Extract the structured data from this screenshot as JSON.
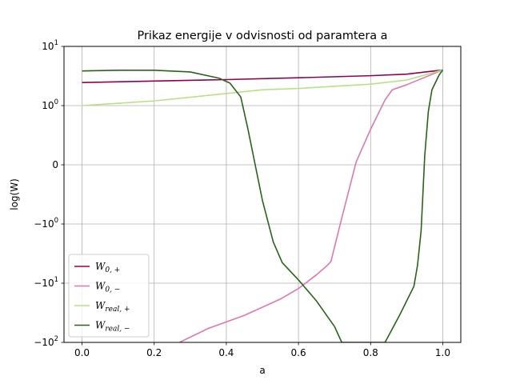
{
  "chart_data": {
    "type": "line",
    "title": "Prikaz energije v odvisnosti od paramtera a",
    "xlabel": "a",
    "ylabel": "log(W)",
    "xlim": [
      -0.05,
      1.05
    ],
    "y_scale": "symlog",
    "ylim": [
      -100,
      10
    ],
    "grid": true,
    "legend_position": "lower-left",
    "x_ticks": [
      0.0,
      0.2,
      0.4,
      0.6,
      0.8,
      1.0
    ],
    "x_tick_labels": [
      "0.0",
      "0.2",
      "0.4",
      "0.6",
      "0.8",
      "1.0"
    ],
    "y_ticks": [
      10,
      1,
      0,
      -1,
      -10,
      -100
    ],
    "y_tick_labels": [
      {
        "base": "10",
        "exp": "1"
      },
      {
        "base": "10",
        "exp": "0"
      },
      {
        "base": "0",
        "exp": ""
      },
      {
        "base": "−10",
        "exp": "0"
      },
      {
        "base": "−10",
        "exp": "1"
      },
      {
        "base": "−10",
        "exp": "2"
      }
    ],
    "series": [
      {
        "name": "W_{0,+}",
        "label_main": "W",
        "label_sub": "0, +",
        "color": "#8e0152",
        "x": [
          0.0,
          0.2,
          0.4,
          0.6,
          0.8,
          0.9,
          1.0
        ],
        "y": [
          2.45,
          2.6,
          2.75,
          2.95,
          3.2,
          3.4,
          4.0
        ]
      },
      {
        "name": "W_{0,-}",
        "label_main": "W",
        "label_sub": "0, −",
        "color": "#de77ae",
        "x": [
          0.27,
          0.35,
          0.45,
          0.55,
          0.6,
          0.65,
          0.68,
          0.69,
          0.72,
          0.76,
          0.8,
          0.84,
          0.86,
          0.9,
          0.95,
          1.0
        ],
        "y": [
          -100,
          -58,
          -35,
          -18.5,
          -12.3,
          -7.2,
          -5.0,
          -4.3,
          -0.9,
          0.05,
          0.6,
          1.25,
          1.85,
          2.25,
          3.0,
          4.0
        ]
      },
      {
        "name": "W_{real,+}",
        "label_main": "W",
        "label_sub": "real, +",
        "color": "#b8e186",
        "x": [
          0.0,
          0.2,
          0.4,
          0.5,
          0.6,
          0.8,
          0.9,
          1.0
        ],
        "y": [
          1.0,
          1.2,
          1.6,
          1.85,
          1.95,
          2.3,
          2.7,
          4.0
        ]
      },
      {
        "name": "W_{real,-}",
        "label_main": "W",
        "label_sub": "real, −",
        "color": "#276419",
        "x": [
          0.0,
          0.1,
          0.2,
          0.3,
          0.38,
          0.41,
          0.44,
          0.46,
          0.5,
          0.53,
          0.555,
          0.6,
          0.65,
          0.7,
          0.72,
          0.84,
          0.88,
          0.92,
          0.93,
          0.94,
          0.95,
          0.96,
          0.97,
          0.99,
          1.0
        ],
        "y": [
          3.85,
          3.95,
          3.95,
          3.7,
          2.9,
          2.4,
          1.4,
          0.6,
          -0.6,
          -2.0,
          -4.5,
          -8.8,
          -20,
          -54,
          -100,
          -100,
          -35,
          -11.3,
          -5.0,
          -1.3,
          0.15,
          0.9,
          1.85,
          3.3,
          4.0
        ]
      }
    ]
  }
}
